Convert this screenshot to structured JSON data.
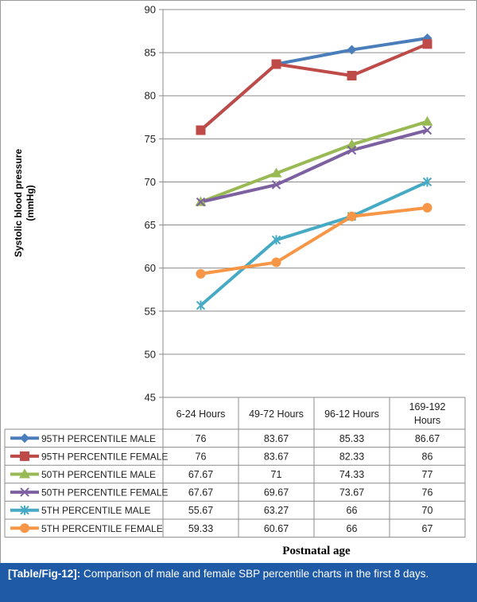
{
  "chart_data": {
    "type": "line",
    "ylabel": "Systolic blood pressure (mmHg)",
    "ylabel_lines": [
      "Systolic blood pressure",
      "(mmHg)"
    ],
    "xlabel": "Postnatal age",
    "ylim": [
      45,
      90
    ],
    "yticks": [
      45,
      50,
      55,
      60,
      65,
      70,
      75,
      80,
      85,
      90
    ],
    "categories": [
      "6-24 Hours",
      "49-72 Hours",
      "96-12 Hours",
      "169-192 Hours"
    ],
    "category_lines": [
      [
        "6-24 Hours"
      ],
      [
        "49-72 Hours"
      ],
      [
        "96-12 Hours"
      ],
      [
        "169-192",
        "Hours"
      ]
    ],
    "series": [
      {
        "name": "95TH PERCENTILE MALE",
        "values": [
          76,
          83.67,
          85.33,
          86.67
        ],
        "labels": [
          "76",
          "83.67",
          "85.33",
          "86.67"
        ],
        "color": "#4a7ebb",
        "marker": "diamond"
      },
      {
        "name": "95TH PERCENTILE FEMALE",
        "values": [
          76,
          83.67,
          82.33,
          86
        ],
        "labels": [
          "76",
          "83.67",
          "82.33",
          "86"
        ],
        "color": "#be4b48",
        "marker": "square"
      },
      {
        "name": "50TH PERCENTILE MALE",
        "values": [
          67.67,
          71,
          74.33,
          77
        ],
        "labels": [
          "67.67",
          "71",
          "74.33",
          "77"
        ],
        "color": "#98b954",
        "marker": "triangle"
      },
      {
        "name": "50TH PERCENTILE FEMALE",
        "values": [
          67.67,
          69.67,
          73.67,
          76
        ],
        "labels": [
          "67.67",
          "69.67",
          "73.67",
          "76"
        ],
        "color": "#7d60a0",
        "marker": "x"
      },
      {
        "name": "5TH PERCENTILE MALE",
        "values": [
          55.67,
          63.27,
          66,
          70
        ],
        "labels": [
          "55.67",
          "63.27",
          "66",
          "70"
        ],
        "color": "#46aac5",
        "marker": "star"
      },
      {
        "name": "5TH PERCENTILE FEMALE",
        "values": [
          59.33,
          60.67,
          66,
          67
        ],
        "labels": [
          "59.33",
          "60.67",
          "66",
          "67"
        ],
        "color": "#f79646",
        "marker": "circle"
      }
    ]
  },
  "caption": {
    "tag": "[Table/Fig-12]:",
    "text": " Comparison of male and female SBP percentile charts in the first 8 days."
  }
}
